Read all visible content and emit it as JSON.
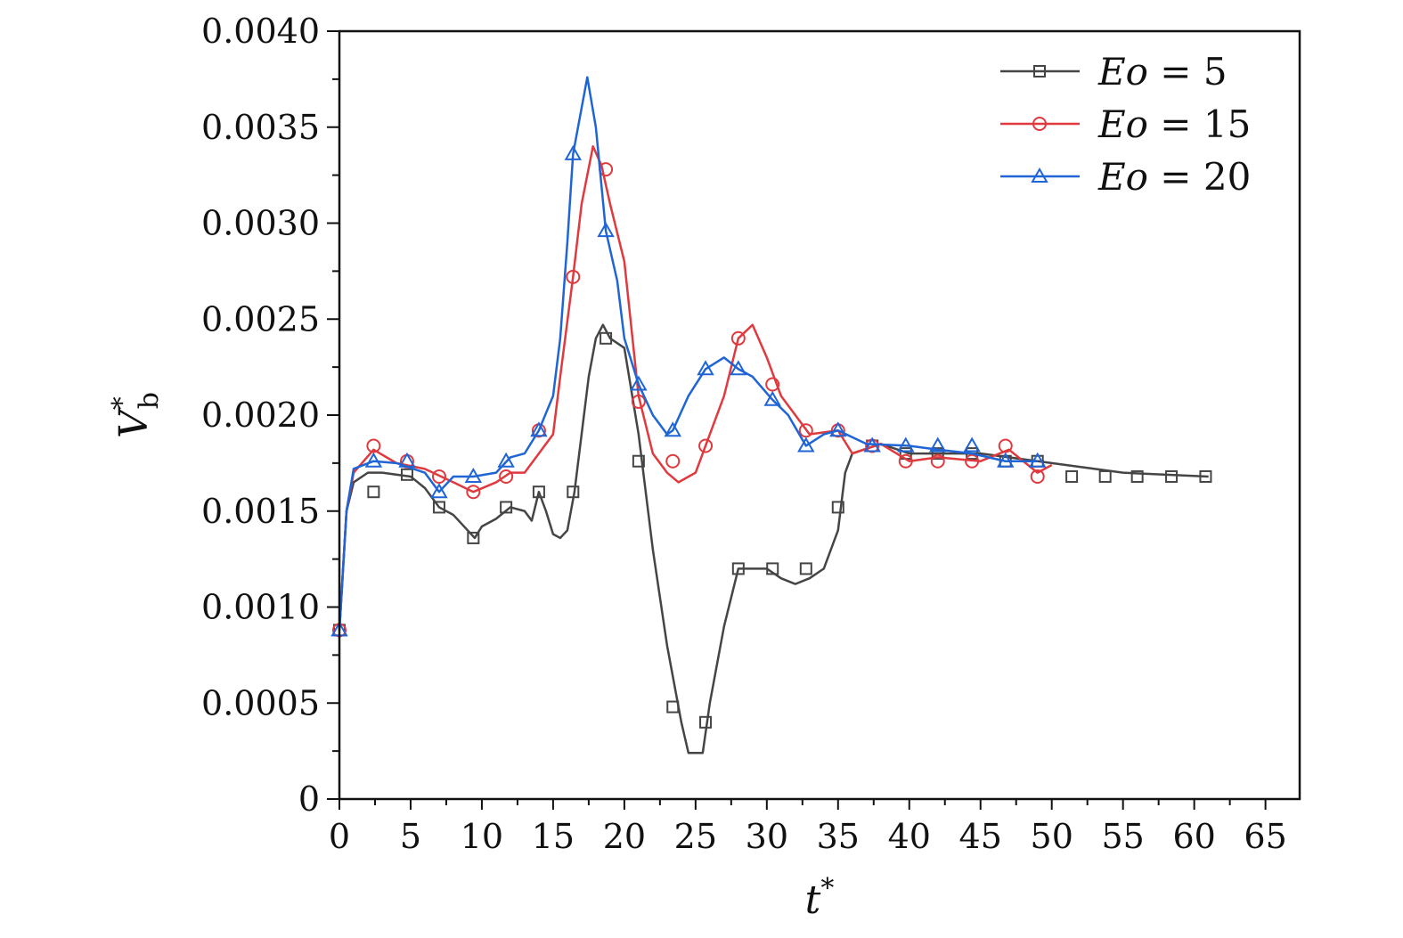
{
  "chart_data": {
    "type": "line",
    "title": "",
    "xlabel": "t*",
    "ylabel": "V*_b",
    "xlim": [
      0,
      67.4
    ],
    "ylim": [
      0,
      0.004
    ],
    "xticks": [
      0,
      5,
      10,
      15,
      20,
      25,
      30,
      35,
      40,
      45,
      50,
      55,
      60,
      65
    ],
    "xtick_labels": [
      "0",
      "5",
      "10",
      "15",
      "20",
      "25",
      "30",
      "35",
      "40",
      "45",
      "50",
      "55",
      "60",
      "65"
    ],
    "yticks": [
      0,
      0.0005,
      0.001,
      0.0015,
      0.002,
      0.0025,
      0.003,
      0.0035,
      0.004
    ],
    "ytick_labels": [
      "0",
      "0.0005",
      "0.0010",
      "0.0015",
      "0.0020",
      "0.0025",
      "0.0030",
      "0.0035",
      "0.0040"
    ],
    "grid": false,
    "legend_position": "top-right",
    "series": [
      {
        "name": "Eo = 5",
        "legend_var": "Eo",
        "legend_val": "5",
        "color": "#454545",
        "marker": "square",
        "line": [
          [
            0,
            0.00088
          ],
          [
            0.5,
            0.0015
          ],
          [
            1,
            0.00165
          ],
          [
            2,
            0.0017
          ],
          [
            3,
            0.0017
          ],
          [
            5,
            0.00168
          ],
          [
            6,
            0.00162
          ],
          [
            7,
            0.00152
          ],
          [
            8,
            0.00148
          ],
          [
            9,
            0.0014
          ],
          [
            9.5,
            0.00136
          ],
          [
            10,
            0.00142
          ],
          [
            11,
            0.00146
          ],
          [
            12,
            0.00152
          ],
          [
            13,
            0.0015
          ],
          [
            13.5,
            0.00145
          ],
          [
            14,
            0.0016
          ],
          [
            14.5,
            0.0015
          ],
          [
            15,
            0.00138
          ],
          [
            15.5,
            0.00136
          ],
          [
            16,
            0.0014
          ],
          [
            16.5,
            0.0016
          ],
          [
            17,
            0.0019
          ],
          [
            17.5,
            0.0022
          ],
          [
            18,
            0.0024
          ],
          [
            18.5,
            0.00247
          ],
          [
            19,
            0.0024
          ],
          [
            20,
            0.00235
          ],
          [
            21,
            0.0019
          ],
          [
            22,
            0.0013
          ],
          [
            23,
            0.0008
          ],
          [
            24,
            0.0004
          ],
          [
            24.5,
            0.00024
          ],
          [
            25.5,
            0.00024
          ],
          [
            26,
            0.0005
          ],
          [
            26.5,
            0.0007
          ],
          [
            27,
            0.0009
          ],
          [
            28,
            0.0012
          ],
          [
            29,
            0.0012
          ],
          [
            30,
            0.0012
          ],
          [
            31,
            0.00115
          ],
          [
            32,
            0.00112
          ],
          [
            33,
            0.00115
          ],
          [
            34,
            0.0012
          ],
          [
            35,
            0.0014
          ],
          [
            35.5,
            0.0017
          ],
          [
            36,
            0.0018
          ],
          [
            38,
            0.00185
          ],
          [
            40,
            0.0018
          ],
          [
            45,
            0.0018
          ],
          [
            50,
            0.00175
          ],
          [
            55,
            0.0017
          ],
          [
            61,
            0.00168
          ]
        ],
        "markers": [
          [
            0,
            0.00088
          ],
          [
            2.4,
            0.0016
          ],
          [
            4.75,
            0.00169
          ],
          [
            7,
            0.00152
          ],
          [
            9.4,
            0.00136
          ],
          [
            11.7,
            0.00152
          ],
          [
            14,
            0.0016
          ],
          [
            16.4,
            0.0016
          ],
          [
            18.7,
            0.0024
          ],
          [
            21,
            0.00176
          ],
          [
            23.4,
            0.00048
          ],
          [
            25.7,
            0.0004
          ],
          [
            28,
            0.0012
          ],
          [
            30.4,
            0.0012
          ],
          [
            32.75,
            0.0012
          ],
          [
            35,
            0.00152
          ],
          [
            37.4,
            0.00184
          ],
          [
            39.75,
            0.0018
          ],
          [
            42,
            0.0018
          ],
          [
            44.4,
            0.0018
          ],
          [
            46.75,
            0.00176
          ],
          [
            49,
            0.00176
          ],
          [
            51.4,
            0.00168
          ],
          [
            53.75,
            0.00168
          ],
          [
            56,
            0.00168
          ],
          [
            58.4,
            0.00168
          ],
          [
            60.8,
            0.00168
          ]
        ]
      },
      {
        "name": "Eo = 15",
        "legend_var": "Eo",
        "legend_val": "15",
        "color": "#e0393e",
        "marker": "circle",
        "line": [
          [
            0,
            0.00088
          ],
          [
            0.5,
            0.0015
          ],
          [
            1,
            0.0017
          ],
          [
            2.4,
            0.00182
          ],
          [
            4,
            0.00175
          ],
          [
            6,
            0.00172
          ],
          [
            8,
            0.00165
          ],
          [
            9.4,
            0.0016
          ],
          [
            11,
            0.00165
          ],
          [
            12,
            0.0017
          ],
          [
            13,
            0.0017
          ],
          [
            14,
            0.0018
          ],
          [
            15,
            0.0019
          ],
          [
            15.5,
            0.0022
          ],
          [
            16.4,
            0.00272
          ],
          [
            17,
            0.0031
          ],
          [
            17.8,
            0.0034
          ],
          [
            18.4,
            0.0033
          ],
          [
            19,
            0.0031
          ],
          [
            20,
            0.0028
          ],
          [
            21,
            0.0021
          ],
          [
            22,
            0.0018
          ],
          [
            23,
            0.0017
          ],
          [
            23.8,
            0.00165
          ],
          [
            25,
            0.0017
          ],
          [
            25.7,
            0.00184
          ],
          [
            27,
            0.0021
          ],
          [
            28,
            0.0024
          ],
          [
            29,
            0.00247
          ],
          [
            30,
            0.0023
          ],
          [
            31,
            0.0021
          ],
          [
            32,
            0.002
          ],
          [
            33,
            0.0019
          ],
          [
            35,
            0.00192
          ],
          [
            36,
            0.0018
          ],
          [
            38,
            0.00185
          ],
          [
            40,
            0.00176
          ],
          [
            42,
            0.00178
          ],
          [
            45,
            0.00176
          ],
          [
            47,
            0.00182
          ],
          [
            49,
            0.0017
          ],
          [
            50,
            0.00174
          ]
        ],
        "markers": [
          [
            0,
            0.00088
          ],
          [
            2.4,
            0.00184
          ],
          [
            4.75,
            0.00176
          ],
          [
            7,
            0.00168
          ],
          [
            9.4,
            0.0016
          ],
          [
            11.7,
            0.00168
          ],
          [
            14,
            0.00192
          ],
          [
            16.4,
            0.00272
          ],
          [
            18.7,
            0.00328
          ],
          [
            21,
            0.00207
          ],
          [
            23.4,
            0.00176
          ],
          [
            25.7,
            0.00184
          ],
          [
            28,
            0.0024
          ],
          [
            30.4,
            0.00216
          ],
          [
            32.75,
            0.00192
          ],
          [
            35,
            0.00192
          ],
          [
            37.4,
            0.00184
          ],
          [
            39.75,
            0.00176
          ],
          [
            42,
            0.00176
          ],
          [
            44.4,
            0.00176
          ],
          [
            46.75,
            0.00184
          ],
          [
            49,
            0.00168
          ]
        ]
      },
      {
        "name": "Eo = 20",
        "legend_var": "Eo",
        "legend_val": "20",
        "color": "#1f65d6",
        "marker": "triangle",
        "line": [
          [
            0,
            0.00088
          ],
          [
            0.5,
            0.0015
          ],
          [
            1,
            0.00172
          ],
          [
            2.4,
            0.00176
          ],
          [
            4,
            0.00175
          ],
          [
            6,
            0.0017
          ],
          [
            7,
            0.0016
          ],
          [
            8,
            0.00168
          ],
          [
            9.4,
            0.00168
          ],
          [
            11,
            0.0017
          ],
          [
            12,
            0.00178
          ],
          [
            13,
            0.0018
          ],
          [
            14,
            0.00192
          ],
          [
            15,
            0.0021
          ],
          [
            15.5,
            0.0024
          ],
          [
            16,
            0.0029
          ],
          [
            16.4,
            0.00336
          ],
          [
            17,
            0.0036
          ],
          [
            17.4,
            0.00376
          ],
          [
            18,
            0.0035
          ],
          [
            18.7,
            0.00296
          ],
          [
            19.5,
            0.0027
          ],
          [
            20,
            0.0024
          ],
          [
            21,
            0.00216
          ],
          [
            22,
            0.002
          ],
          [
            23,
            0.0019
          ],
          [
            23.4,
            0.00192
          ],
          [
            24.5,
            0.0021
          ],
          [
            25.7,
            0.00224
          ],
          [
            27,
            0.0023
          ],
          [
            28,
            0.00224
          ],
          [
            29,
            0.0022
          ],
          [
            30.4,
            0.00208
          ],
          [
            31.5,
            0.002
          ],
          [
            32.75,
            0.00184
          ],
          [
            34,
            0.0019
          ],
          [
            35,
            0.00192
          ],
          [
            37,
            0.00185
          ],
          [
            40,
            0.00184
          ],
          [
            42,
            0.00182
          ],
          [
            44.4,
            0.0018
          ],
          [
            46.75,
            0.00176
          ],
          [
            49,
            0.00176
          ]
        ],
        "markers": [
          [
            0,
            0.00088
          ],
          [
            2.4,
            0.00176
          ],
          [
            4.75,
            0.00176
          ],
          [
            7,
            0.0016
          ],
          [
            9.4,
            0.00168
          ],
          [
            11.7,
            0.00176
          ],
          [
            14,
            0.00192
          ],
          [
            16.4,
            0.00336
          ],
          [
            18.7,
            0.00296
          ],
          [
            21,
            0.00216
          ],
          [
            23.4,
            0.00192
          ],
          [
            25.7,
            0.00224
          ],
          [
            28,
            0.00224
          ],
          [
            30.4,
            0.00208
          ],
          [
            32.75,
            0.00184
          ],
          [
            35,
            0.00192
          ],
          [
            37.4,
            0.00184
          ],
          [
            39.75,
            0.00184
          ],
          [
            42,
            0.00184
          ],
          [
            44.4,
            0.00184
          ],
          [
            46.75,
            0.00176
          ],
          [
            49,
            0.00176
          ]
        ]
      }
    ]
  }
}
